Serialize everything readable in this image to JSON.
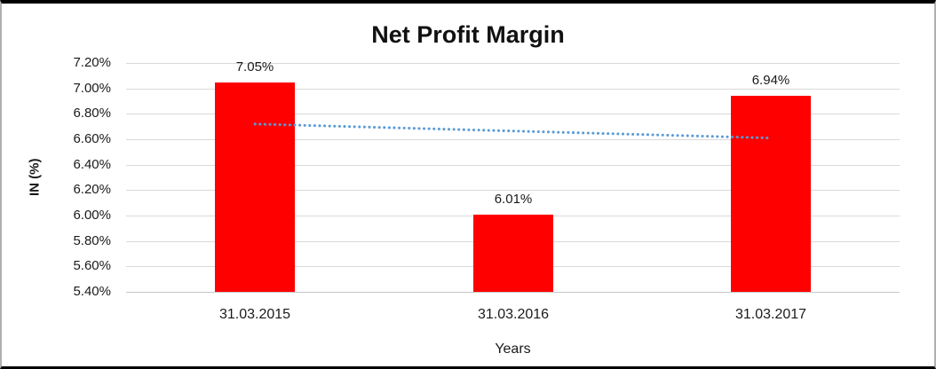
{
  "chart_data": {
    "type": "bar",
    "title": "Net Profit Margin",
    "xlabel": "Years",
    "ylabel": "IN (%)",
    "categories": [
      "31.03.2015",
      "31.03.2016",
      "31.03.2017"
    ],
    "values": [
      7.05,
      6.01,
      6.94
    ],
    "data_labels": [
      "7.05%",
      "6.01%",
      "6.94%"
    ],
    "y_ticks": [
      "7.20%",
      "7.00%",
      "6.80%",
      "6.60%",
      "6.40%",
      "6.20%",
      "6.00%",
      "5.80%",
      "5.60%",
      "5.40%"
    ],
    "ylim": [
      5.4,
      7.2
    ],
    "y_step": 0.2,
    "grid": true,
    "legend": "none",
    "bar_color": "#ff0000",
    "gridline_color": "#d9d9d9",
    "trendline": {
      "type": "linear",
      "style": "dotted",
      "color": "#5b9bd5",
      "start_value": 6.72,
      "end_value": 6.61
    }
  }
}
